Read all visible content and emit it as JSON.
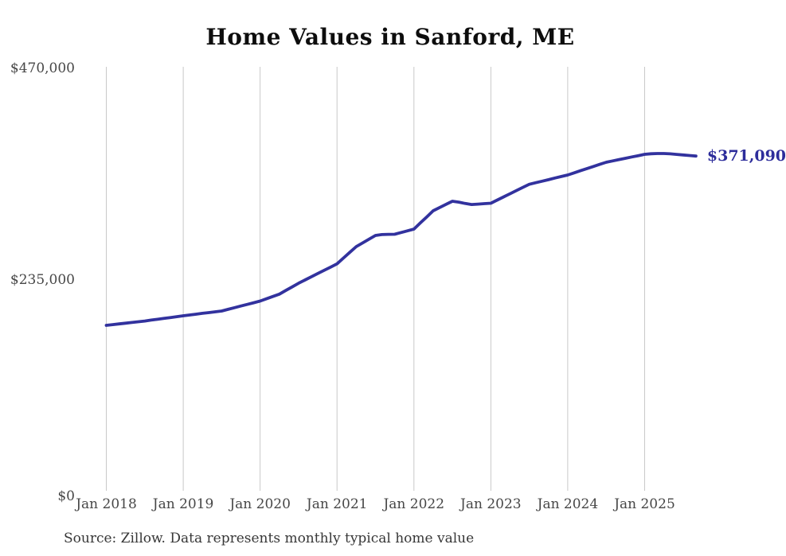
{
  "chart_data": {
    "type": "line",
    "title": "Home Values in Sanford, ME",
    "source": "Source: Zillow. Data represents monthly typical home value",
    "end_label": "$371,090",
    "final_value": 371090,
    "ylim": [
      0,
      470000
    ],
    "grid": "vertical-only",
    "grid_color": "#c9c9c9",
    "line_color": "#32329e",
    "end_label_color": "#2d2d9b",
    "x_start": "2018-01",
    "x_end": "2025-09",
    "y_ticks": [
      {
        "label": "$470,000",
        "value": 470000
      },
      {
        "label": "$235,000",
        "value": 235000
      },
      {
        "label": "$0",
        "value": 0
      }
    ],
    "x_ticks": [
      {
        "label": "Jan 2018",
        "month_index": 0
      },
      {
        "label": "Jan 2019",
        "month_index": 12
      },
      {
        "label": "Jan 2020",
        "month_index": 24
      },
      {
        "label": "Jan 2021",
        "month_index": 36
      },
      {
        "label": "Jan 2022",
        "month_index": 48
      },
      {
        "label": "Jan 2023",
        "month_index": 60
      },
      {
        "label": "Jan 2024",
        "month_index": 72
      },
      {
        "label": "Jan 2025",
        "month_index": 84
      }
    ],
    "series": [
      {
        "name": "Monthly typical home value",
        "values": [
          183400,
          184200,
          185000,
          185800,
          186600,
          187400,
          188200,
          189200,
          190100,
          191100,
          192100,
          193000,
          194000,
          194900,
          195800,
          196700,
          197500,
          198400,
          199300,
          201100,
          203000,
          204800,
          206600,
          208500,
          210300,
          212900,
          215400,
          218000,
          222000,
          226000,
          230100,
          233700,
          237300,
          240900,
          244400,
          248000,
          251600,
          258000,
          264400,
          270700,
          274800,
          279000,
          283100,
          284000,
          284300,
          284400,
          286300,
          288200,
          290100,
          296900,
          303600,
          310400,
          314000,
          317500,
          321000,
          320000,
          318500,
          317400,
          317800,
          318300,
          318800,
          322300,
          325800,
          329300,
          332800,
          336300,
          339800,
          341500,
          343200,
          344900,
          346700,
          348400,
          350100,
          352500,
          354800,
          357200,
          359500,
          361900,
          364200,
          365700,
          367200,
          368600,
          370100,
          371500,
          373000,
          373600,
          373900,
          373900,
          373500,
          372900,
          372300,
          371700,
          371090
        ]
      }
    ]
  }
}
